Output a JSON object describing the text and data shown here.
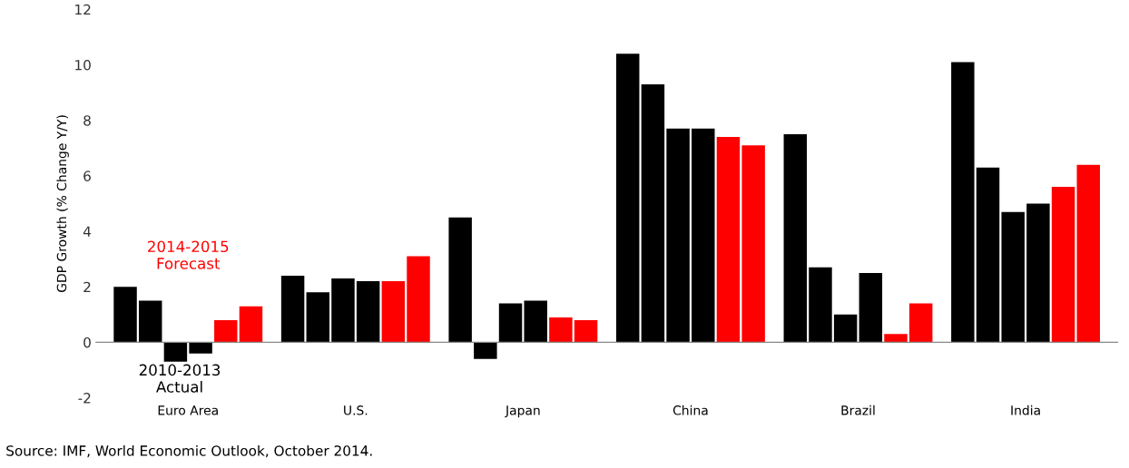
{
  "chart_data": {
    "type": "bar",
    "ylabel": "GDP Growth (% Change Y/Y)",
    "categories": [
      "Euro Area",
      "U.S.",
      "Japan",
      "China",
      "Brazil",
      "India"
    ],
    "series": [
      {
        "color": "#000000",
        "values": [
          2.0,
          2.4,
          4.5,
          10.4,
          7.5,
          10.1
        ]
      },
      {
        "color": "#000000",
        "values": [
          1.5,
          1.8,
          -0.6,
          9.3,
          2.7,
          6.3
        ]
      },
      {
        "color": "#000000",
        "values": [
          -0.7,
          2.3,
          1.4,
          7.7,
          1.0,
          4.7
        ]
      },
      {
        "color": "#000000",
        "values": [
          -0.4,
          2.2,
          1.5,
          7.7,
          2.5,
          5.0
        ]
      },
      {
        "color": "#ff0000",
        "values": [
          0.8,
          2.2,
          0.9,
          7.4,
          0.3,
          5.6
        ]
      },
      {
        "color": "#ff0000",
        "values": [
          1.3,
          3.1,
          0.8,
          7.1,
          1.4,
          6.4
        ]
      }
    ],
    "ylim": [
      -2,
      12
    ],
    "yticks": [
      -2,
      0,
      2,
      4,
      6,
      8,
      10,
      12
    ],
    "legend": false,
    "annotations": [
      "2010-2013\nActual",
      "2014-2015\nForecast",
      "Source: IMF, World Economic Outlook, October 2014."
    ]
  }
}
